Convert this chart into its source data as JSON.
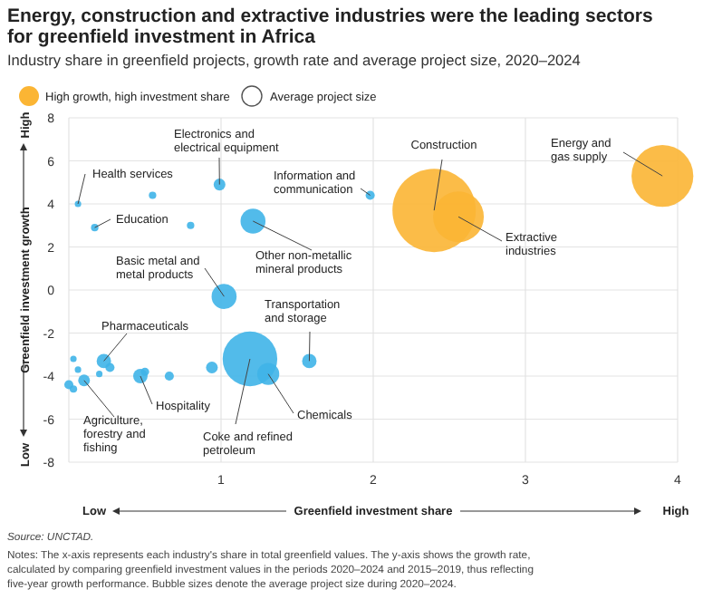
{
  "chart_data": {
    "type": "bubble",
    "title": "Energy, construction and extractive industries were the leading sectors for greenfield investment in Africa",
    "subtitle": "Industry share in greenfield projects, growth rate and average project size, 2020–2024",
    "xlabel": "Greenfield investment share",
    "ylabel": "Greenfield investment growth",
    "xlim": [
      0,
      4
    ],
    "xticks": [
      1,
      2,
      3,
      4
    ],
    "ylim": [
      -8,
      8
    ],
    "yticks": [
      -8,
      -6,
      -4,
      -2,
      0,
      2,
      4,
      6,
      8
    ],
    "grid": true,
    "legend": "top left",
    "relative": false,
    "series": [
      {
        "color": "#3fb4e8",
        "x": [
          0.06,
          0.55,
          0.99,
          0.17,
          0.8,
          1.21,
          1.02,
          1.98,
          1.58,
          1.19,
          1.31,
          0.94,
          0.66,
          0.47,
          0.5,
          0.23,
          0.27,
          0.2,
          0.03,
          0.06,
          0.1,
          0.0,
          0.03
        ],
        "values": [
          4.0,
          4.4,
          4.9,
          2.9,
          3.0,
          3.2,
          -0.3,
          4.4,
          -3.3,
          -3.2,
          -3.9,
          -3.6,
          -4.0,
          -4.0,
          -3.8,
          -3.3,
          -3.6,
          -3.9,
          -3.2,
          -3.7,
          -4.2,
          -4.4,
          -4.6
        ],
        "sizes": [
          0.006,
          0.008,
          0.02,
          0.008,
          0.008,
          0.09,
          0.09,
          0.012,
          0.03,
          0.43,
          0.07,
          0.02,
          0.012,
          0.03,
          0.01,
          0.03,
          0.012,
          0.006,
          0.006,
          0.006,
          0.02,
          0.012,
          0.008
        ]
      },
      {
        "name": "High growth, high investment share",
        "color": "#fbb534",
        "x": [
          2.4,
          2.56,
          3.9
        ],
        "values": [
          3.7,
          3.4,
          5.3
        ],
        "sizes": [
          1,
          0.37,
          0.55
        ]
      }
    ],
    "annotations": [
      {
        "text": "Health services",
        "x": 0.06,
        "y": 4.0
      },
      {
        "text": "Electronics and electrical equipment",
        "x": 0.99,
        "y": 4.9
      },
      {
        "text": "Education",
        "x": 0.17,
        "y": 2.9
      },
      {
        "text": "Information and communication",
        "x": 1.98,
        "y": 4.4
      },
      {
        "text": "Other non-metallic mineral products",
        "x": 1.21,
        "y": 3.2
      },
      {
        "text": "Basic metal and metal products",
        "x": 1.02,
        "y": -0.3
      },
      {
        "text": "Construction",
        "x": 2.4,
        "y": 3.7
      },
      {
        "text": "Energy and gas supply",
        "x": 3.9,
        "y": 5.3
      },
      {
        "text": "Extractive industries",
        "x": 2.56,
        "y": 3.4
      },
      {
        "text": "Transportation and storage",
        "x": 1.58,
        "y": -3.3
      },
      {
        "text": "Pharmaceuticals",
        "x": 0.23,
        "y": -3.3
      },
      {
        "text": "Hospitality",
        "x": 0.47,
        "y": -4.0
      },
      {
        "text": "Agriculture, forestry and fishing",
        "x": 0.1,
        "y": -4.2
      },
      {
        "text": "Coke and refined petroleum",
        "x": 1.19,
        "y": -3.2
      },
      {
        "text": "Chemicals",
        "x": 1.31,
        "y": -3.9
      },
      "Average project size",
      "Low",
      "High",
      "Low",
      "High",
      "Source: UNCTAD.",
      "Notes: The x-axis represents each industry's share in total greenfield values. The y-axis shows the growth rate, calculated by comparing greenfield investment values in the periods 2020–2024 and 2015–2019, thus reflecting five-year growth performance. Bubble sizes denote the average project size during 2020–2024."
    ]
  }
}
